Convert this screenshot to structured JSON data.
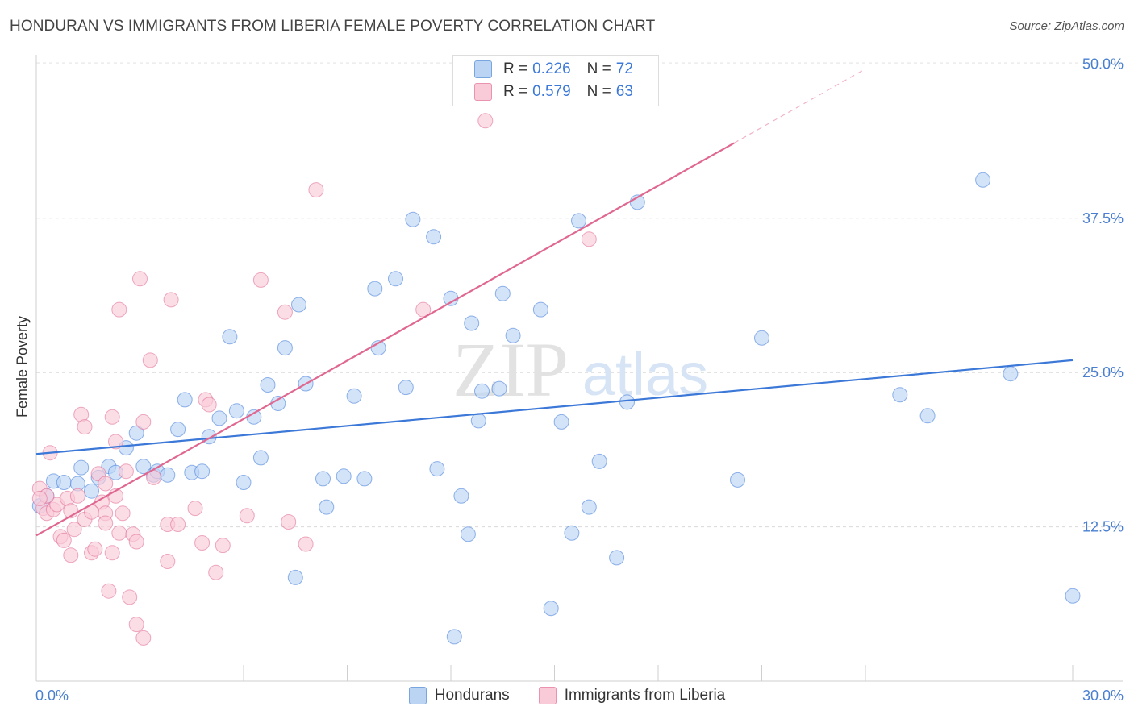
{
  "title": "HONDURAN VS IMMIGRANTS FROM LIBERIA FEMALE POVERTY CORRELATION CHART",
  "source": "Source: ZipAtlas.com",
  "watermark": {
    "zip": "ZIP",
    "atlas": "atlas"
  },
  "legend_box": {
    "rows": [
      {
        "r_label": "R =",
        "r_value": "0.226",
        "n_label": "N =",
        "n_value": "72",
        "color": "#7aa6e0"
      },
      {
        "r_label": "R =",
        "r_value": "0.579",
        "n_label": "N =",
        "n_value": "63",
        "color": "#eb92ae"
      }
    ]
  },
  "bottom_legend": [
    {
      "label": "Hondurans",
      "color": "#7aa6e0"
    },
    {
      "label": "Immigrants from Liberia",
      "color": "#eb92ae"
    }
  ],
  "chart_data": {
    "type": "scatter",
    "title": "HONDURAN VS IMMIGRANTS FROM LIBERIA FEMALE POVERTY CORRELATION CHART",
    "xlabel": "",
    "ylabel": "Female Poverty",
    "xlim": [
      0,
      30
    ],
    "ylim": [
      0,
      50
    ],
    "x_tick_labels": [
      "0.0%",
      "30.0%"
    ],
    "y_ticks": [
      12.5,
      25.0,
      37.5,
      50.0
    ],
    "y_tick_labels": [
      "12.5%",
      "25.0%",
      "37.5%",
      "50.0%"
    ],
    "grid": true,
    "series": [
      {
        "name": "Hondurans",
        "color": "#3c78d8",
        "fill": "#bcd4f4",
        "trend": {
          "x": [
            0,
            30
          ],
          "y": [
            18.4,
            26.0
          ],
          "dashed_from": null
        },
        "points": [
          [
            0.1,
            14.2
          ],
          [
            0.3,
            15.0
          ],
          [
            0.5,
            16.2
          ],
          [
            0.8,
            16.1
          ],
          [
            1.2,
            16.0
          ],
          [
            1.3,
            17.3
          ],
          [
            1.6,
            15.4
          ],
          [
            1.8,
            16.5
          ],
          [
            2.1,
            17.4
          ],
          [
            2.3,
            16.9
          ],
          [
            2.6,
            18.9
          ],
          [
            2.9,
            20.1
          ],
          [
            3.1,
            17.4
          ],
          [
            3.4,
            16.7
          ],
          [
            3.5,
            17.0
          ],
          [
            3.8,
            16.7
          ],
          [
            4.1,
            20.4
          ],
          [
            4.3,
            22.8
          ],
          [
            4.5,
            16.9
          ],
          [
            4.8,
            17.0
          ],
          [
            5.0,
            19.8
          ],
          [
            5.3,
            21.3
          ],
          [
            5.6,
            27.9
          ],
          [
            5.8,
            21.9
          ],
          [
            6.0,
            16.1
          ],
          [
            6.3,
            21.4
          ],
          [
            6.5,
            18.1
          ],
          [
            6.7,
            24.0
          ],
          [
            7.0,
            22.5
          ],
          [
            7.2,
            27.0
          ],
          [
            7.5,
            8.4
          ],
          [
            7.6,
            30.5
          ],
          [
            7.8,
            24.1
          ],
          [
            8.3,
            16.4
          ],
          [
            8.4,
            14.1
          ],
          [
            8.9,
            16.6
          ],
          [
            9.2,
            23.1
          ],
          [
            9.5,
            16.4
          ],
          [
            9.8,
            31.8
          ],
          [
            9.9,
            27.0
          ],
          [
            10.4,
            32.6
          ],
          [
            10.7,
            23.8
          ],
          [
            10.9,
            37.4
          ],
          [
            11.5,
            36.0
          ],
          [
            11.6,
            17.2
          ],
          [
            12.0,
            31.0
          ],
          [
            12.1,
            3.6
          ],
          [
            12.3,
            15.0
          ],
          [
            12.5,
            11.9
          ],
          [
            12.6,
            29.0
          ],
          [
            12.8,
            21.1
          ],
          [
            12.9,
            23.5
          ],
          [
            13.4,
            23.7
          ],
          [
            13.5,
            31.4
          ],
          [
            13.8,
            28.0
          ],
          [
            14.6,
            30.1
          ],
          [
            14.9,
            5.9
          ],
          [
            15.2,
            21.0
          ],
          [
            15.5,
            12.0
          ],
          [
            15.7,
            37.3
          ],
          [
            16.0,
            14.1
          ],
          [
            16.3,
            17.8
          ],
          [
            16.8,
            10.0
          ],
          [
            17.1,
            22.6
          ],
          [
            17.4,
            38.8
          ],
          [
            20.3,
            16.3
          ],
          [
            21.0,
            27.8
          ],
          [
            25.0,
            23.2
          ],
          [
            25.8,
            21.5
          ],
          [
            27.4,
            40.6
          ],
          [
            28.2,
            24.9
          ],
          [
            30.0,
            6.9
          ]
        ]
      },
      {
        "name": "Immigrants from Liberia",
        "color": "#e06890",
        "fill": "#f9cbd9",
        "trend": {
          "x": [
            0,
            20.2
          ],
          "y": [
            11.8,
            43.6
          ],
          "dashed_to": [
            24.0,
            49.6
          ]
        },
        "points": [
          [
            0.1,
            15.6
          ],
          [
            0.2,
            14.0
          ],
          [
            0.3,
            13.6
          ],
          [
            0.4,
            18.5
          ],
          [
            0.5,
            13.9
          ],
          [
            0.6,
            14.3
          ],
          [
            0.7,
            11.7
          ],
          [
            0.8,
            11.4
          ],
          [
            0.9,
            14.8
          ],
          [
            1.0,
            10.2
          ],
          [
            1.0,
            13.8
          ],
          [
            1.1,
            12.3
          ],
          [
            1.2,
            15.0
          ],
          [
            1.3,
            21.6
          ],
          [
            1.4,
            13.1
          ],
          [
            1.4,
            20.6
          ],
          [
            1.6,
            13.7
          ],
          [
            1.6,
            10.4
          ],
          [
            1.7,
            10.7
          ],
          [
            1.8,
            16.8
          ],
          [
            1.9,
            14.5
          ],
          [
            2.0,
            13.6
          ],
          [
            2.0,
            12.8
          ],
          [
            2.0,
            16.0
          ],
          [
            2.1,
            7.3
          ],
          [
            2.2,
            10.4
          ],
          [
            2.2,
            21.4
          ],
          [
            2.3,
            19.4
          ],
          [
            2.3,
            15.0
          ],
          [
            2.4,
            12.0
          ],
          [
            2.4,
            30.1
          ],
          [
            2.5,
            13.6
          ],
          [
            2.6,
            17.0
          ],
          [
            2.7,
            6.8
          ],
          [
            2.8,
            11.9
          ],
          [
            2.9,
            4.6
          ],
          [
            2.9,
            11.3
          ],
          [
            3.0,
            32.6
          ],
          [
            3.1,
            3.5
          ],
          [
            3.1,
            21.0
          ],
          [
            3.3,
            26.0
          ],
          [
            3.4,
            16.5
          ],
          [
            3.8,
            12.7
          ],
          [
            3.8,
            9.7
          ],
          [
            3.9,
            30.9
          ],
          [
            4.1,
            12.7
          ],
          [
            4.6,
            14.0
          ],
          [
            4.8,
            11.2
          ],
          [
            4.9,
            22.8
          ],
          [
            5.0,
            22.4
          ],
          [
            5.2,
            8.8
          ],
          [
            5.4,
            11.0
          ],
          [
            6.1,
            13.4
          ],
          [
            6.5,
            32.5
          ],
          [
            7.2,
            29.9
          ],
          [
            7.3,
            12.9
          ],
          [
            7.8,
            11.1
          ],
          [
            8.1,
            39.8
          ],
          [
            11.2,
            30.1
          ],
          [
            13.0,
            45.4
          ],
          [
            16.0,
            35.8
          ],
          [
            0.3,
            15.0
          ],
          [
            0.1,
            14.8
          ]
        ]
      }
    ]
  }
}
